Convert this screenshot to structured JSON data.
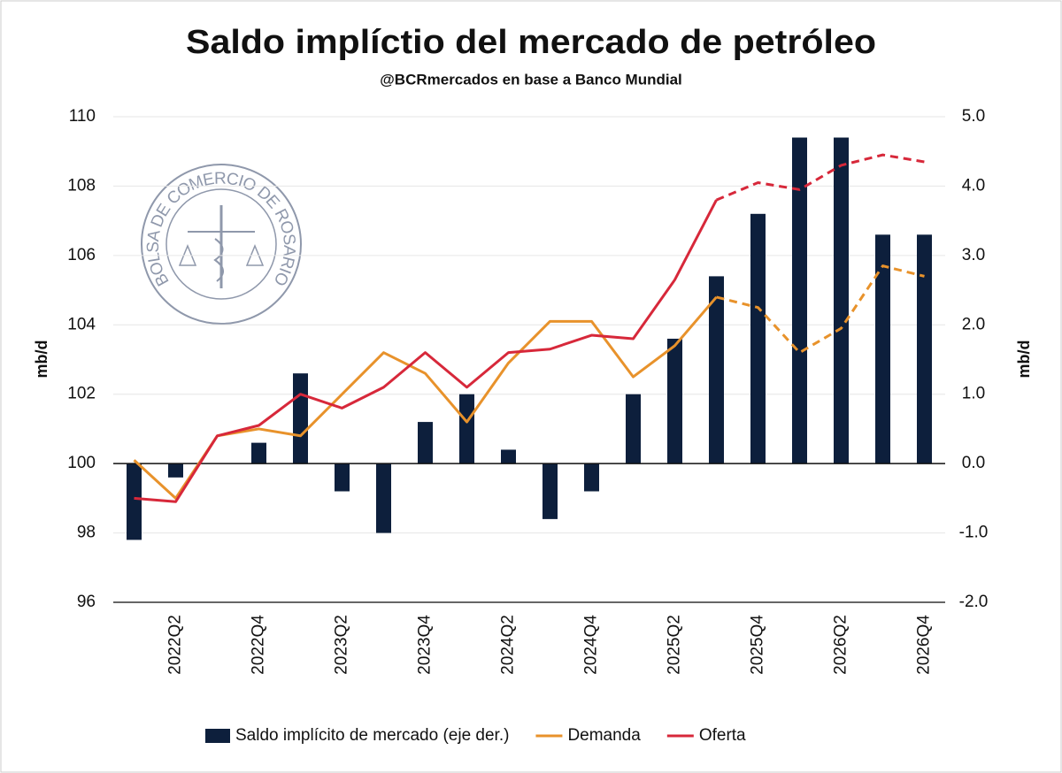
{
  "chart_data": {
    "type": "bar_line",
    "title": "Saldo implíctio del mercado de petróleo",
    "subtitle": "@BCRmercados en base a Banco Mundial",
    "watermark": "BOLSA DE COMERCIO DE ROSARIO",
    "ylabel": "mb/d",
    "y2label": "mb/d",
    "categories": [
      null,
      "2022Q2",
      null,
      "2022Q4",
      null,
      "2023Q2",
      null,
      "2023Q4",
      null,
      "2024Q2",
      null,
      "2024Q4",
      null,
      "2025Q2",
      null,
      "2025Q4",
      null,
      "2026Q2",
      null,
      "2026Q4"
    ],
    "ylim": [
      96,
      110
    ],
    "yticks": [
      96,
      98,
      100,
      102,
      104,
      106,
      108,
      110
    ],
    "y2lim": [
      -2,
      5
    ],
    "y2ticks": [
      {
        "value": -2,
        "label": "-2.0"
      },
      {
        "value": -1,
        "label": "-1.0"
      },
      {
        "value": 0,
        "label": "0.0"
      },
      {
        "value": 1,
        "label": "1.0"
      },
      {
        "value": 2,
        "label": "2.0"
      },
      {
        "value": 3,
        "label": "3.0"
      },
      {
        "value": 4,
        "label": "4.0"
      },
      {
        "value": 5,
        "label": "5.0"
      }
    ],
    "grid": true,
    "legend": "bottom",
    "dashed_from": 14,
    "series": [
      {
        "name": "Saldo implícito de mercado (eje der.)",
        "type": "bar",
        "axis": "y2",
        "color": "#0d1f3c",
        "values": [
          -1.1,
          -0.2,
          0,
          0.3,
          1.3,
          -0.4,
          -1.0,
          0.6,
          1.0,
          0.2,
          -0.8,
          -0.4,
          1.0,
          1.8,
          2.7,
          3.6,
          4.7,
          4.7,
          3.3,
          3.3
        ]
      },
      {
        "name": "Demanda",
        "type": "line",
        "color": "#e8922b",
        "values": [
          100.1,
          99.0,
          100.8,
          101.0,
          100.8,
          102.0,
          103.2,
          102.6,
          101.2,
          102.9,
          104.1,
          104.1,
          102.5,
          103.4,
          104.8,
          104.5,
          103.2,
          103.9,
          105.7,
          105.4
        ]
      },
      {
        "name": "Oferta",
        "type": "line",
        "color": "#d7283a",
        "values": [
          99.0,
          98.9,
          100.8,
          101.1,
          102.0,
          101.6,
          102.2,
          103.2,
          102.2,
          103.2,
          103.3,
          103.7,
          103.6,
          105.3,
          107.6,
          108.1,
          107.9,
          108.6,
          108.9,
          108.7
        ]
      }
    ]
  }
}
